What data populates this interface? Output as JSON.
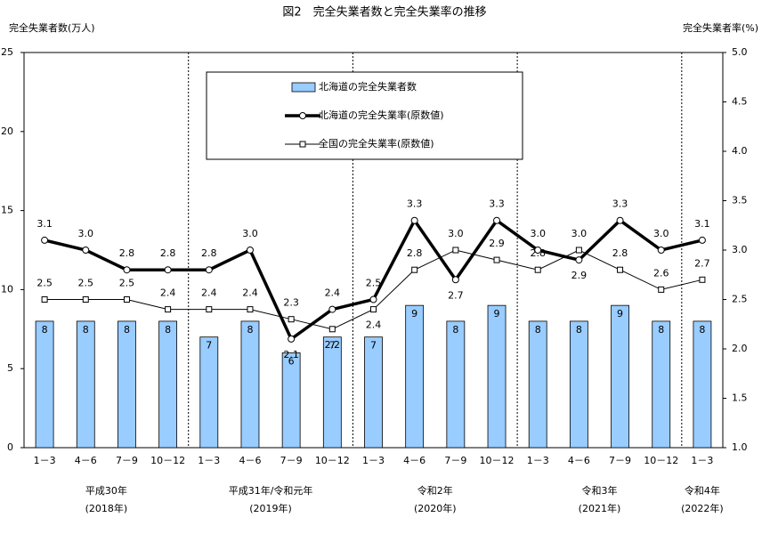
{
  "chart_data": {
    "type": "bar-line",
    "title": "図2　完全失業者数と完全失業率の推移",
    "y_label": "完全失業者数(万人)",
    "y2_label": "完全失業者率(%)",
    "categories": [
      "1－3",
      "4－6",
      "7－9",
      "10－12",
      "1－3",
      "4－6",
      "7－9",
      "10－12",
      "1－3",
      "4－6",
      "7－9",
      "10－12",
      "1－3",
      "4－6",
      "7－9",
      "10－12",
      "1－3"
    ],
    "groups": [
      [
        "平成30年",
        "(2018年)"
      ],
      [
        "平成31年/令和元年",
        "(2019年)"
      ],
      [
        "令和2年",
        "(2020年)"
      ],
      [
        "令和3年",
        "(2021年)"
      ],
      [
        "令和4年",
        "(2022年)"
      ]
    ],
    "ylim": [
      0,
      25
    ],
    "yticks": [
      0,
      5,
      10,
      15,
      20,
      25
    ],
    "y2lim": [
      1.0,
      5.0
    ],
    "y2ticks": [
      {
        "value": 1.0,
        "label": "1.0"
      },
      {
        "value": 1.5,
        "label": "1.5"
      },
      {
        "value": 2.0,
        "label": "2.0"
      },
      {
        "value": 2.5,
        "label": "2.5"
      },
      {
        "value": 3.0,
        "label": "3.0"
      },
      {
        "value": 3.5,
        "label": "3.5"
      },
      {
        "value": 4.0,
        "label": "4.0"
      },
      {
        "value": 4.5,
        "label": "4.5"
      },
      {
        "value": 5.0,
        "label": "5.0"
      }
    ],
    "series": [
      {
        "name": "北海道の完全失業者数",
        "type": "bar",
        "color": "#99ccff",
        "values": [
          8,
          8,
          8,
          8,
          7,
          8,
          6,
          7,
          7,
          9,
          8,
          9,
          8,
          8,
          9,
          8,
          8
        ]
      },
      {
        "name": "北海道の完全失業率(原数値)",
        "type": "line",
        "axis": "y2",
        "color": "#000000",
        "marker": "circle",
        "values": [
          3.1,
          3.0,
          2.8,
          2.8,
          2.8,
          3.0,
          2.1,
          2.4,
          2.5,
          3.3,
          2.7,
          3.3,
          3.0,
          2.9,
          3.3,
          3.0,
          3.1
        ],
        "value_labels": [
          "3.1",
          "3.0",
          "2.8",
          "2.8",
          "2.8",
          "3.0",
          "2.1",
          "2.4",
          "2.5",
          "3.3",
          "2.7",
          "3.3",
          "3.0",
          "2.9",
          "3.3",
          "3.0",
          "3.1"
        ]
      },
      {
        "name": "全国の完全失業率(原数値)",
        "type": "line",
        "axis": "y2",
        "color": "#000000",
        "marker": "square",
        "values": [
          2.5,
          2.5,
          2.5,
          2.4,
          2.4,
          2.4,
          2.3,
          2.2,
          2.4,
          2.8,
          3.0,
          2.9,
          2.8,
          3.0,
          2.8,
          2.6,
          2.7
        ],
        "value_labels": [
          "2.5",
          "2.5",
          "2.5",
          "2.4",
          "2.4",
          "2.4",
          "2.3",
          "2.2",
          "2.4",
          "2.8",
          "3.0",
          "2.9",
          "2.8",
          "3.0",
          "2.8",
          "2.6",
          "2.7"
        ]
      }
    ]
  }
}
